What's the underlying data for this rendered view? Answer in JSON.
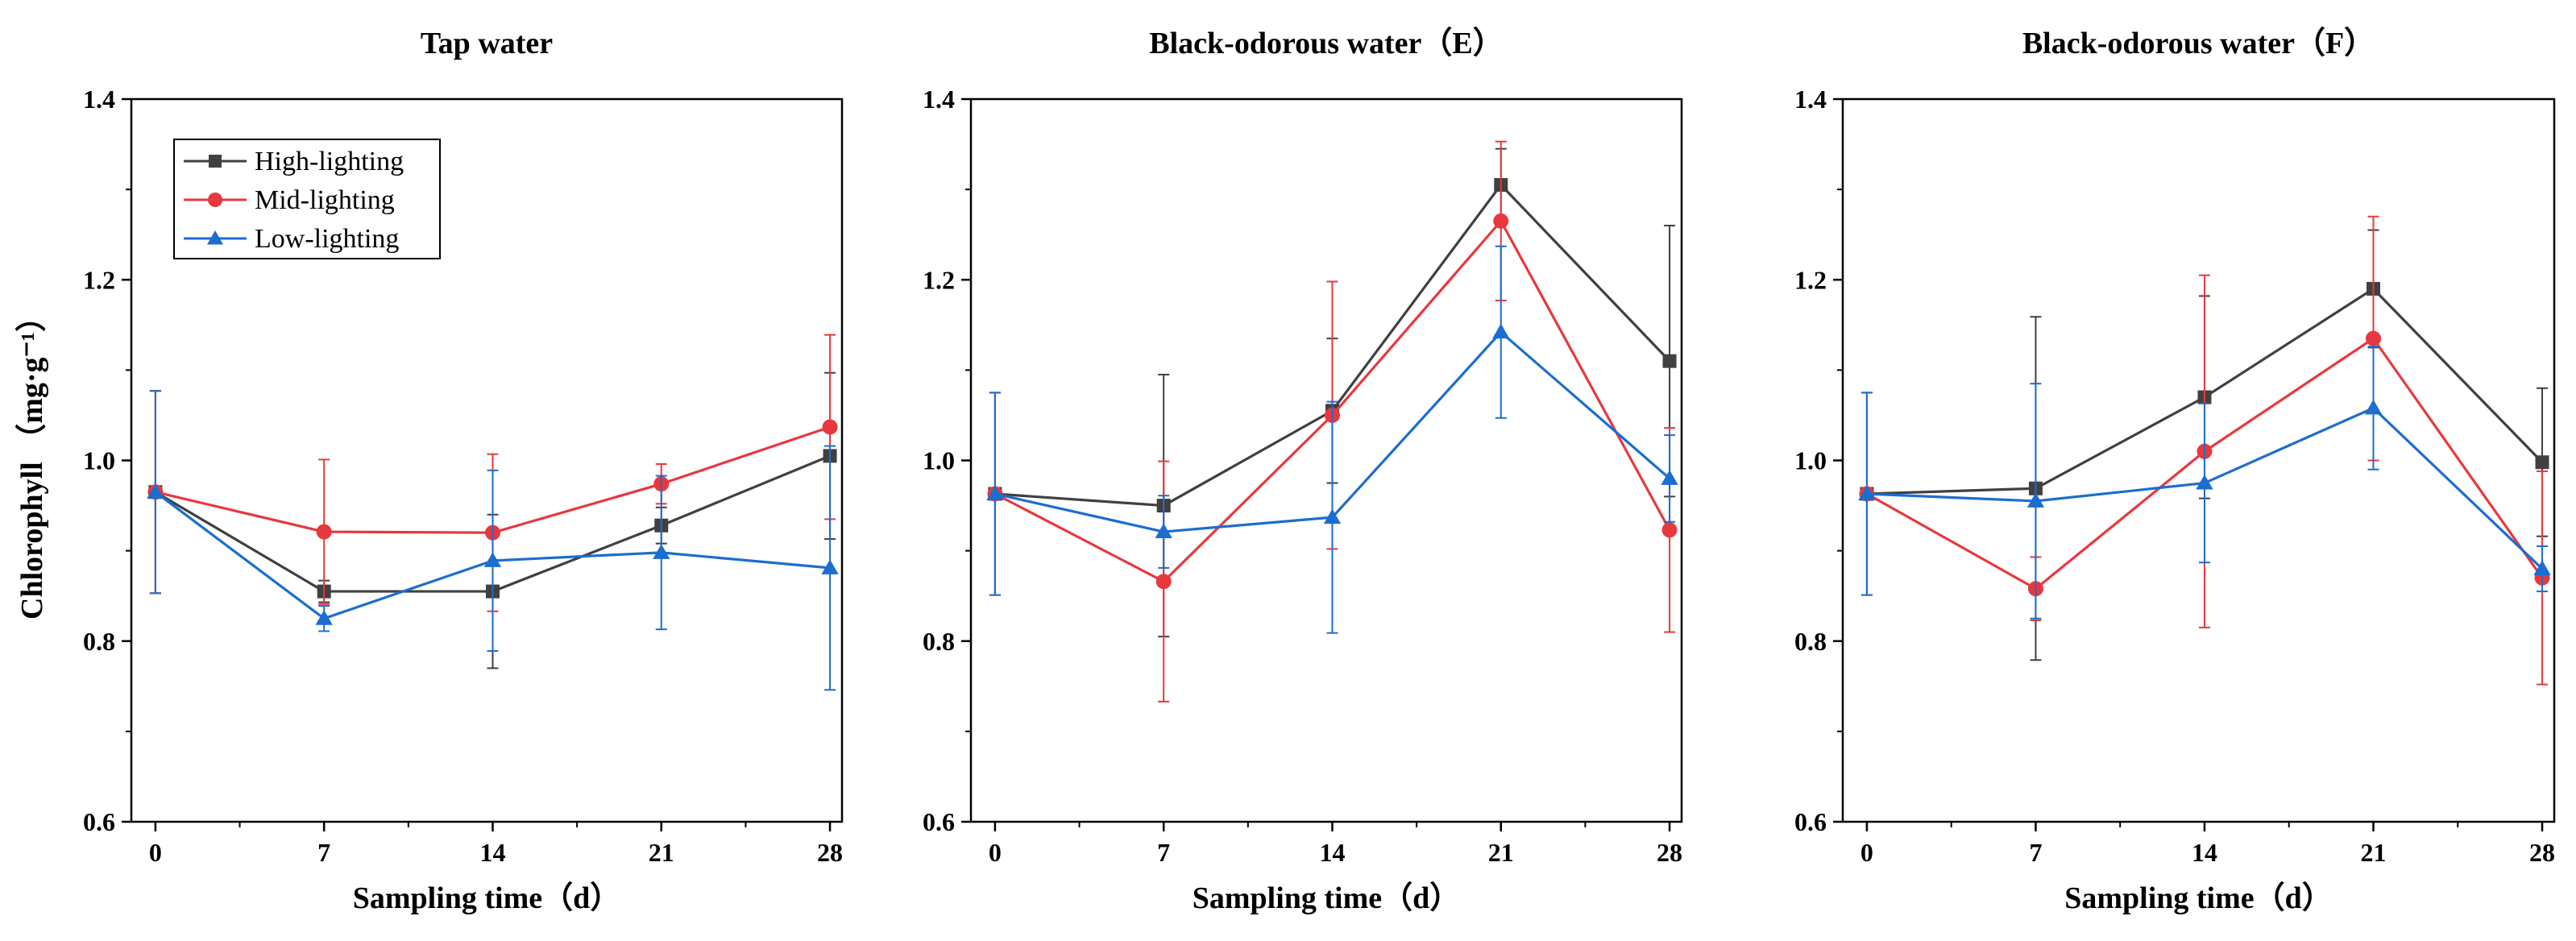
{
  "chart_data": [
    {
      "type": "line",
      "title": "Tap water",
      "xlabel": "Sampling time（d）",
      "ylabel": "Chlorophyll （mg·g⁻¹）",
      "x": [
        0,
        7,
        14,
        21,
        28
      ],
      "xlim": [
        -1,
        28.5
      ],
      "ylim": [
        0.6,
        1.4
      ],
      "yticks": [
        "0.6",
        "0.8",
        "1.0",
        "1.2",
        "1.4"
      ],
      "legend": "top-left",
      "series": [
        {
          "name": "High-lighting",
          "color": "#404040",
          "marker": "square",
          "values": [
            0.965,
            0.855,
            0.855,
            0.928,
            1.005
          ],
          "errors": [
            0.112,
            0.012,
            0.085,
            0.02,
            0.092
          ]
        },
        {
          "name": "Mid-lighting",
          "color": "#e8383d",
          "marker": "circle",
          "values": [
            0.965,
            0.921,
            0.92,
            0.974,
            1.037
          ],
          "errors": [
            0.112,
            0.08,
            0.087,
            0.022,
            0.102
          ]
        },
        {
          "name": "Low-lighting",
          "color": "#1c6dd0",
          "marker": "triangle",
          "values": [
            0.965,
            0.825,
            0.889,
            0.898,
            0.881
          ],
          "errors": [
            0.112,
            0.014,
            0.1,
            0.085,
            0.135
          ]
        }
      ]
    },
    {
      "type": "line",
      "title": "Black-odorous water（E）",
      "xlabel": "Sampling time（d）",
      "ylabel": "",
      "x": [
        0,
        7,
        14,
        21,
        28
      ],
      "xlim": [
        -1,
        28.5
      ],
      "ylim": [
        0.6,
        1.4
      ],
      "yticks": [
        "0.6",
        "0.8",
        "1.0",
        "1.2",
        "1.4"
      ],
      "series": [
        {
          "name": "High-lighting",
          "color": "#404040",
          "marker": "square",
          "values": [
            0.963,
            0.95,
            1.055,
            1.305,
            1.11
          ],
          "errors": [
            0.112,
            0.145,
            0.08,
            0.04,
            0.15
          ]
        },
        {
          "name": "Mid-lighting",
          "color": "#e8383d",
          "marker": "circle",
          "values": [
            0.963,
            0.866,
            1.05,
            1.265,
            0.923
          ],
          "errors": [
            0.112,
            0.133,
            0.148,
            0.088,
            0.113
          ]
        },
        {
          "name": "Low-lighting",
          "color": "#1c6dd0",
          "marker": "triangle",
          "values": [
            0.963,
            0.921,
            0.937,
            1.142,
            0.98
          ],
          "errors": [
            0.112,
            0.04,
            0.128,
            0.095,
            0.048
          ]
        }
      ]
    },
    {
      "type": "line",
      "title": "Black-odorous water（F）",
      "xlabel": "Sampling time（d）",
      "ylabel": "",
      "x": [
        0,
        7,
        14,
        21,
        28
      ],
      "xlim": [
        -1,
        28.5
      ],
      "ylim": [
        0.6,
        1.4
      ],
      "yticks": [
        "0.6",
        "0.8",
        "1.0",
        "1.2",
        "1.4"
      ],
      "series": [
        {
          "name": "High-lighting",
          "color": "#404040",
          "marker": "square",
          "values": [
            0.963,
            0.969,
            1.07,
            1.19,
            0.998
          ],
          "errors": [
            0.112,
            0.19,
            0.112,
            0.065,
            0.082
          ]
        },
        {
          "name": "Mid-lighting",
          "color": "#e8383d",
          "marker": "circle",
          "values": [
            0.963,
            0.858,
            1.01,
            1.135,
            0.87
          ],
          "errors": [
            0.112,
            0.035,
            0.195,
            0.135,
            0.118
          ]
        },
        {
          "name": "Low-lighting",
          "color": "#1c6dd0",
          "marker": "triangle",
          "values": [
            0.963,
            0.955,
            0.975,
            1.058,
            0.88
          ],
          "errors": [
            0.112,
            0.13,
            0.088,
            0.068,
            0.025
          ]
        }
      ]
    }
  ]
}
